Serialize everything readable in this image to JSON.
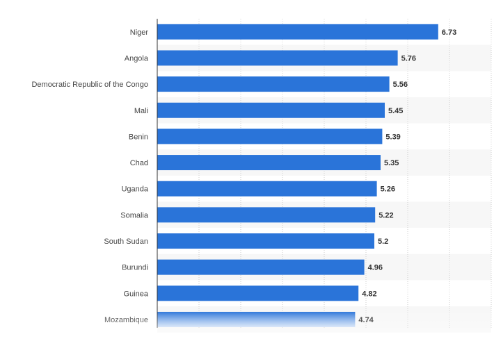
{
  "chart_data": {
    "type": "bar",
    "orientation": "horizontal",
    "categories": [
      "Niger",
      "Angola",
      "Democratic Republic of the Congo",
      "Mali",
      "Benin",
      "Chad",
      "Uganda",
      "Somalia",
      "South Sudan",
      "Burundi",
      "Guinea",
      "Mozambique"
    ],
    "values": [
      6.73,
      5.76,
      5.56,
      5.45,
      5.39,
      5.35,
      5.26,
      5.22,
      5.2,
      4.96,
      4.82,
      4.74
    ],
    "value_labels": [
      "6.73",
      "5.76",
      "5.56",
      "5.45",
      "5.39",
      "5.35",
      "5.26",
      "5.22",
      "5.2",
      "4.96",
      "4.82",
      "4.74"
    ],
    "xlim": [
      0,
      8
    ],
    "grid": true,
    "legend": "none",
    "bar_color": "#2a74d9",
    "band_color": "#f7f7f7"
  }
}
